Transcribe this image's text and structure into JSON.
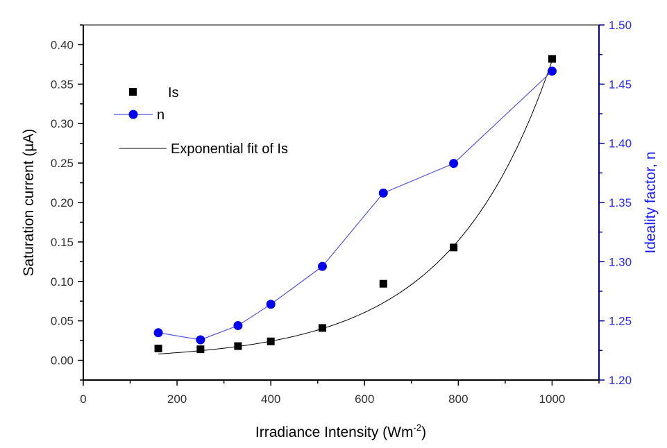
{
  "chart_data": {
    "type": "line",
    "title": "",
    "xlabel": "Irradiance Intensity (Wm",
    "xlabel_sup": "-2",
    "xlabel_close": ")",
    "ylabel_left": "Saturation current (µA)",
    "ylabel_right": "Ideality factor, n",
    "xlim": [
      0,
      1100
    ],
    "ylim_left": [
      -0.025,
      0.425
    ],
    "ylim_right": [
      1.2,
      1.5
    ],
    "x_ticks": [
      "0",
      "200",
      "400",
      "600",
      "800",
      "1000"
    ],
    "y_left_ticks": [
      "0.00",
      "0.05",
      "0.10",
      "0.15",
      "0.20",
      "0.25",
      "0.30",
      "0.35",
      "0.40"
    ],
    "y_right_ticks": [
      "1.20",
      "1.25",
      "1.30",
      "1.35",
      "1.40",
      "1.45",
      "1.50"
    ],
    "grid": false,
    "legend_position": "top-left",
    "series": [
      {
        "name": "Is",
        "axis": "left",
        "marker": "square",
        "color": "#000000",
        "x": [
          160,
          250,
          330,
          400,
          510,
          640,
          790,
          1000
        ],
        "y": [
          0.015,
          0.014,
          0.018,
          0.024,
          0.041,
          0.097,
          0.143,
          0.382
        ]
      },
      {
        "name": "n",
        "axis": "right",
        "marker": "circle",
        "color": "#0000ee",
        "line_color": "#5555dd",
        "x": [
          160,
          250,
          330,
          400,
          510,
          640,
          790,
          1000
        ],
        "y": [
          1.24,
          1.234,
          1.246,
          1.264,
          1.296,
          1.358,
          1.383,
          1.461
        ]
      },
      {
        "name": "Exponential fit of Is",
        "axis": "left",
        "marker": "none",
        "color": "#000000",
        "model": "y = A*exp(x/t)",
        "A": 0.00387,
        "t": 218,
        "x_range": [
          160,
          1000
        ]
      }
    ],
    "right_axis_color": "#00008b",
    "right_label_color": "#1a1aff"
  }
}
